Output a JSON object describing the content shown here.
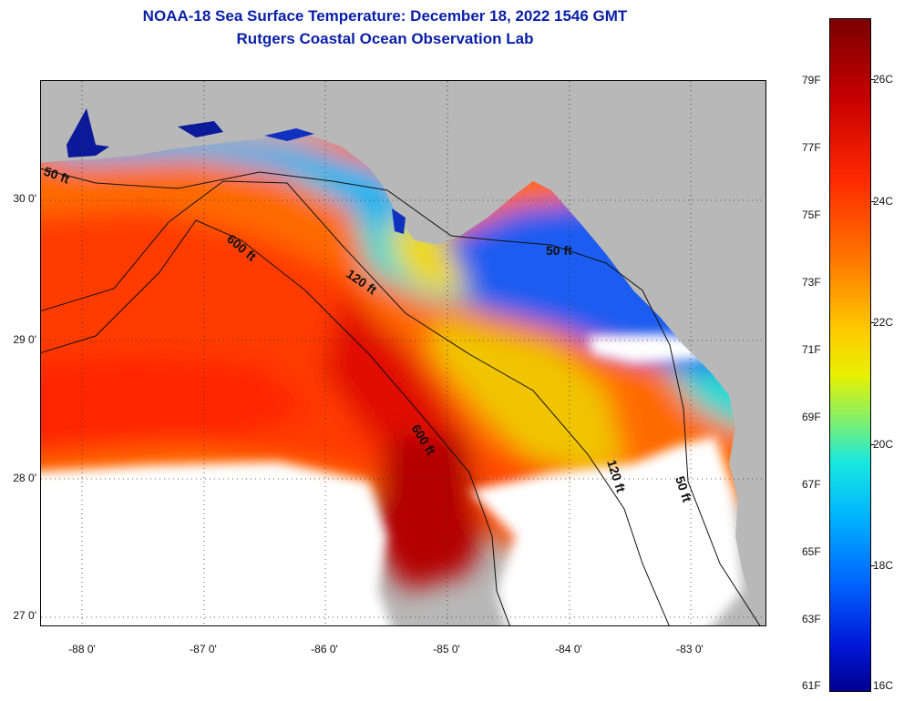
{
  "title": {
    "line1": "NOAA-18 Sea Surface Temperature:  December 18, 2022 1546 GMT",
    "line2": "Rutgers Coastal Ocean Observation Lab"
  },
  "axes": {
    "latitude_labels": [
      "30 0'",
      "29 0'",
      "28 0'",
      "27 0'"
    ],
    "longitude_labels": [
      "-88 0'",
      "-87 0'",
      "-86 0'",
      "-85 0'",
      "-84 0'",
      "-83 0'"
    ]
  },
  "contours": {
    "c50_west": "50 ft",
    "c50_east": "50 ft",
    "c50_south": "50 ft",
    "c120_north": "120 ft",
    "c120_south": "120 ft",
    "c600_north": "600 ft",
    "c600_south": "600 ft"
  },
  "colorbar": {
    "fahrenheit": [
      "79F",
      "77F",
      "75F",
      "73F",
      "71F",
      "69F",
      "67F",
      "65F",
      "63F",
      "61F"
    ],
    "celsius": [
      "26C",
      "24C",
      "22C",
      "20C",
      "18C",
      "16C"
    ]
  },
  "colors": {
    "title": "#0a1fa8",
    "land": "#b8b8b8",
    "cloud": "#ffffff"
  }
}
